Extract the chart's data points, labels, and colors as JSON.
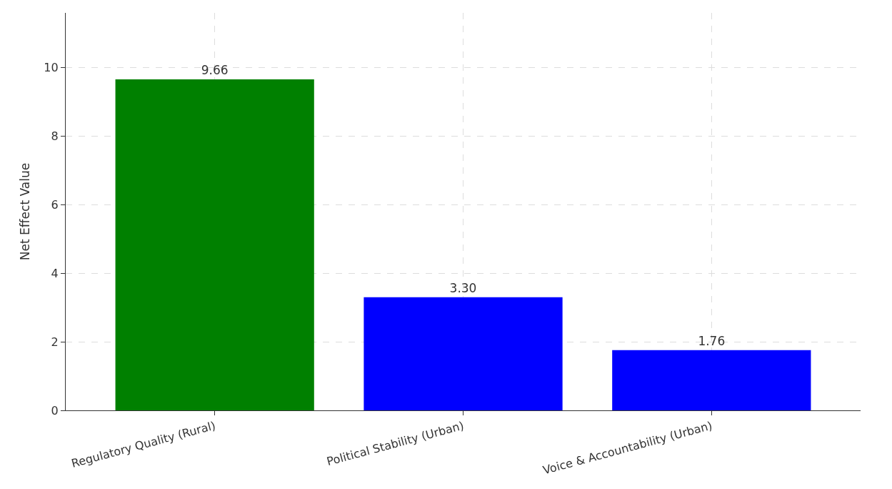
{
  "chart_data": {
    "type": "bar",
    "ylabel": "Net Effect Value",
    "categories": [
      "Regulatory Quality (Rural)",
      "Political Stability (Urban)",
      "Voice & Accountability (Urban)"
    ],
    "values": [
      9.66,
      3.3,
      1.76
    ],
    "colors": [
      "#008000",
      "#0000ff",
      "#0000ff"
    ],
    "value_labels": [
      "9.66",
      "3.30",
      "1.76"
    ],
    "ylim": [
      0,
      11.6
    ],
    "yticks": [
      0,
      2,
      4,
      6,
      8,
      10
    ],
    "grid": true
  }
}
